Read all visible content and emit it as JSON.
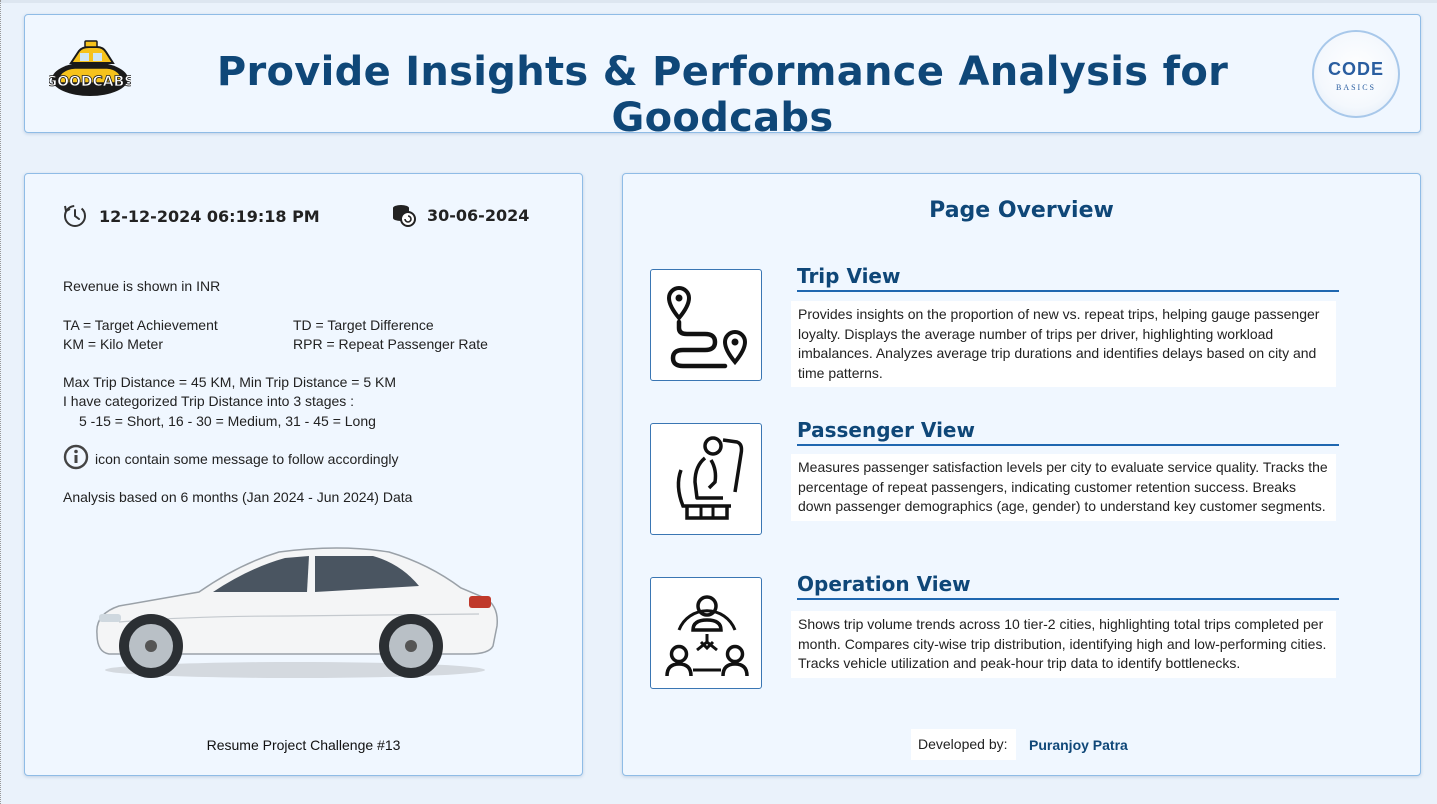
{
  "header": {
    "title": "Provide Insights & Performance Analysis for Goodcabs",
    "logo_left": "GOODCABS",
    "logo_right": {
      "word": "CODE",
      "sub": "BASICS"
    }
  },
  "left_panel": {
    "refresh_timestamp": "12-12-2024 06:19:18 PM",
    "data_date": "30-06-2024",
    "revenue_note": "Revenue is shown in INR",
    "abbreviations": [
      {
        "text": "TA = Target Achievement"
      },
      {
        "text": "TD = Target Difference"
      },
      {
        "text": "KM = Kilo Meter"
      },
      {
        "text": "RPR = Repeat Passenger Rate"
      }
    ],
    "distance_lines": [
      "Max Trip Distance = 45 KM, Min Trip Distance = 5 KM",
      "I have categorized Trip Distance into 3 stages :",
      "5 -15 = Short, 16 - 30 = Medium, 31 - 45 = Long"
    ],
    "info_note": "icon contain some message to follow accordingly",
    "analysis_note": "Analysis based on  6 months (Jan 2024 - Jun 2024) Data",
    "challenge": "Resume Project Challenge #13"
  },
  "right_panel": {
    "title": "Page Overview",
    "sections": [
      {
        "title": "Trip View",
        "icon": "route-icon",
        "description": "Provides insights on the proportion of new vs. repeat trips, helping gauge passenger loyalty. Displays the average number of trips per driver, highlighting workload imbalances. Analyzes average trip durations and identifies delays based on city and time patterns."
      },
      {
        "title": "Passenger View",
        "icon": "passenger-seat-icon",
        "description": "Measures passenger satisfaction levels per city to evaluate service quality. Tracks the percentage of repeat passengers, indicating customer retention success. Breaks down passenger demographics (age, gender) to understand key customer segments."
      },
      {
        "title": "Operation View",
        "icon": "team-network-icon",
        "description": "Shows trip volume trends across 10 tier-2 cities, highlighting total trips completed per month. Compares city-wise trip distribution, identifying high and low-performing cities. Tracks vehicle utilization and peak-hour trip data to identify bottlenecks."
      }
    ],
    "developed_by_label": "Developed by:",
    "developer_name": "Puranjoy Patra"
  },
  "colors": {
    "title_blue": "#0f4778",
    "card_bg": "#f0f7ff",
    "card_border": "#8fbce6",
    "page_bg": "#eaf2fb"
  }
}
